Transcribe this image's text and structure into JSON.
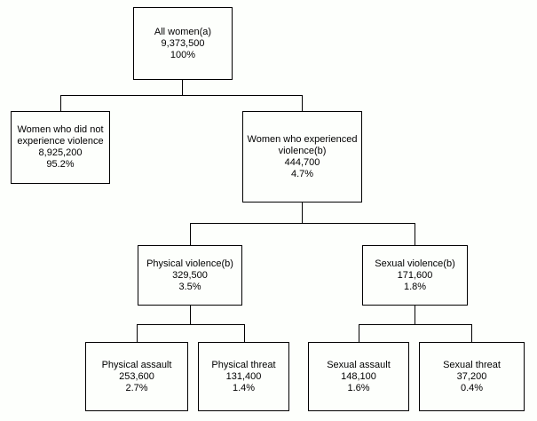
{
  "diagram": {
    "type": "hierarchy-tree",
    "colors": {
      "background": "#fdfffc",
      "box_border": "#000000",
      "text": "#000000"
    },
    "nodes": {
      "all_women": {
        "label": "All women(a)",
        "count": "9,373,500",
        "percent": "100%",
        "children": [
          "no_violence",
          "violence"
        ]
      },
      "no_violence": {
        "label": "Women who did not experience violence",
        "count": "8,925,200",
        "percent": "95.2%",
        "children": []
      },
      "violence": {
        "label": "Women who experienced violence(b)",
        "count": "444,700",
        "percent": "4.7%",
        "children": [
          "physical_violence",
          "sexual_violence"
        ]
      },
      "physical_violence": {
        "label": "Physical violence(b)",
        "count": "329,500",
        "percent": "3.5%",
        "children": [
          "physical_assault",
          "physical_threat"
        ]
      },
      "sexual_violence": {
        "label": "Sexual violence(b)",
        "count": "171,600",
        "percent": "1.8%",
        "children": [
          "sexual_assault",
          "sexual_threat"
        ]
      },
      "physical_assault": {
        "label": "Physical assault",
        "count": "253,600",
        "percent": "2.7%",
        "children": []
      },
      "physical_threat": {
        "label": "Physical threat",
        "count": "131,400",
        "percent": "1.4%",
        "children": []
      },
      "sexual_assault": {
        "label": "Sexual assault",
        "count": "148,100",
        "percent": "1.6%",
        "children": []
      },
      "sexual_threat": {
        "label": "Sexual threat",
        "count": "37,200",
        "percent": "0.4%",
        "children": []
      }
    }
  }
}
